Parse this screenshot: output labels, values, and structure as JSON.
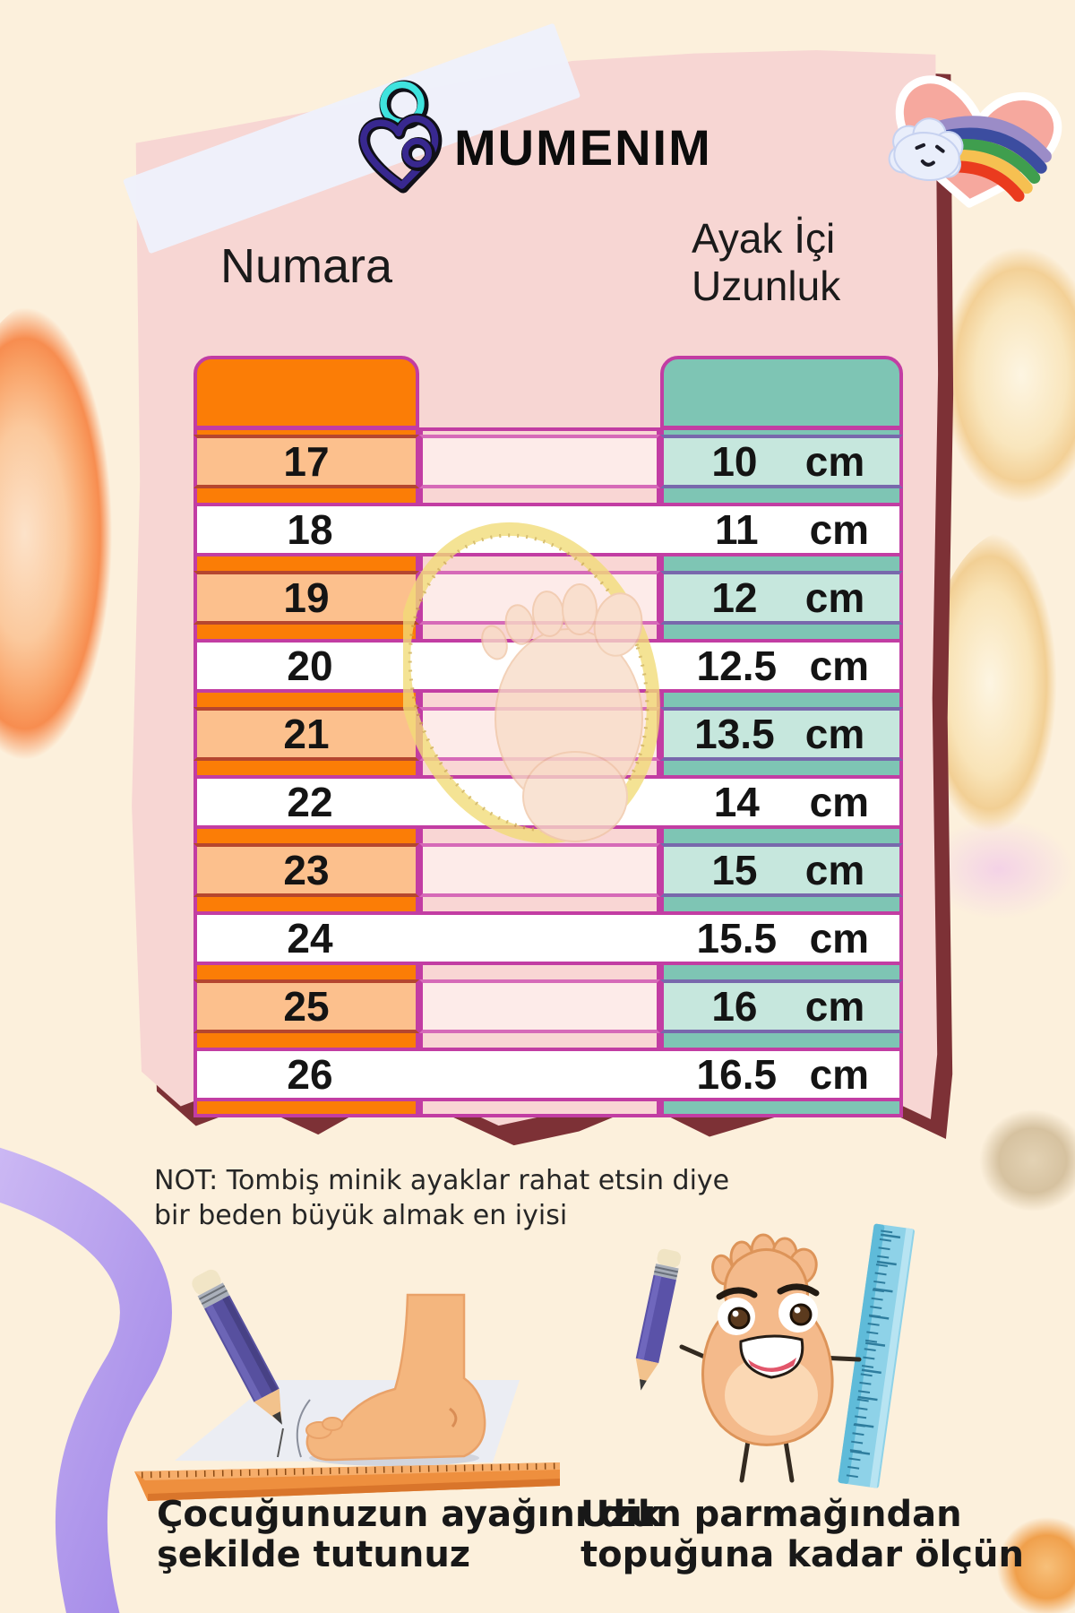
{
  "poster": {
    "brand_logo_text": "MUMENIM",
    "size_chart": {
      "column1_header": "Numara",
      "column2_header_line1": "Ayak İçi",
      "column2_header_line2": "Uzunluk",
      "unit": "cm",
      "rows": [
        {
          "size": "17",
          "length": "10"
        },
        {
          "size": "18",
          "length": "11"
        },
        {
          "size": "19",
          "length": "12"
        },
        {
          "size": "20",
          "length": "12.5"
        },
        {
          "size": "21",
          "length": "13.5"
        },
        {
          "size": "22",
          "length": "14"
        },
        {
          "size": "23",
          "length": "15"
        },
        {
          "size": "24",
          "length": "15.5"
        },
        {
          "size": "25",
          "length": "16"
        },
        {
          "size": "26",
          "length": "16.5"
        }
      ]
    },
    "note_line1": "NOT: Tombiş minik ayaklar rahat etsin diye",
    "note_line2": "bir beden büyük almak en iyisi",
    "instruction_left_line1": "Çocuğunuzun ayağını dik",
    "instruction_left_line2": "şekilde tutunuz",
    "instruction_right_line1": "Uzun parmağından",
    "instruction_right_line2": "topuğuna kadar ölçün"
  },
  "icons": {
    "logo_mark": "mother-baby-heart-icon",
    "sticker": "rainbow-cloud-heart-sticker",
    "table_watermark": "foot-with-measuring-tape-illustration",
    "left_illustration": "pencil-tracing-foot-on-paper-with-ruler",
    "right_illustration": "cartoon-foot-character-with-pencil-and-ruler"
  },
  "colors": {
    "background": "#fcf0dc",
    "card": "#f7d6d3",
    "card_shadow": "#7d3136",
    "orange": "#fb7d06",
    "orange_light": "#fcc08d",
    "teal": "#7ec5b4",
    "teal_light": "#c6e7dd",
    "mid_pink": "#f9d6d4",
    "mid_pink_light": "#fdebe9",
    "border_magenta": "#c23da3",
    "text": "#141414"
  }
}
